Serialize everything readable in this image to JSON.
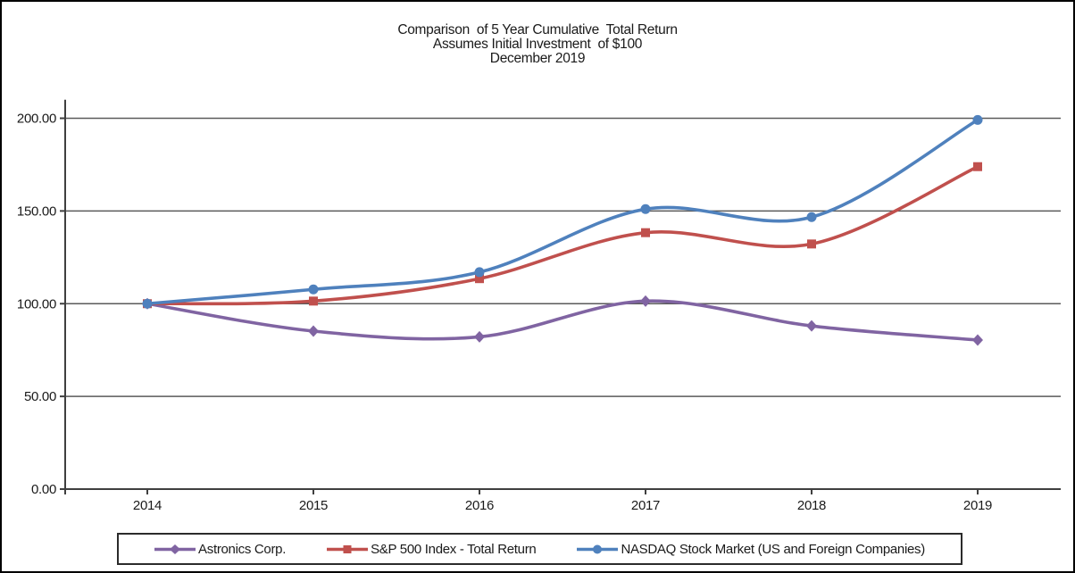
{
  "chart_data": {
    "type": "line",
    "title_lines": [
      "Comparison  of 5 Year Cumulative  Total Return",
      "Assumes Initial Investment  of $100",
      "December 2019"
    ],
    "title": "Comparison of 5 Year Cumulative Total Return, Assumes Initial Investment of $100, December 2019",
    "categories": [
      "2014",
      "2015",
      "2016",
      "2017",
      "2018",
      "2019"
    ],
    "series": [
      {
        "name": "Astronics Corp.",
        "marker": "diamond",
        "color": "#8064A2",
        "values": [
          100.0,
          85.2,
          82.1,
          101.4,
          88.0,
          80.4
        ]
      },
      {
        "name": "S&P 500 Index - Total Return",
        "marker": "square",
        "color": "#C0504D",
        "values": [
          100.0,
          101.4,
          113.5,
          138.3,
          132.2,
          173.9
        ]
      },
      {
        "name": "NASDAQ Stock Market (US and Foreign Companies)",
        "marker": "circle",
        "color": "#4F81BD",
        "values": [
          100.0,
          107.7,
          117.0,
          151.0,
          146.7,
          199.1
        ]
      }
    ],
    "xlabel": "",
    "ylabel": "",
    "ylim": [
      0,
      210
    ],
    "ytick_values": [
      0,
      50,
      100,
      150,
      200
    ],
    "ytick_labels": [
      "0.00",
      "50.00",
      "100.00",
      "150.00",
      "200.00"
    ],
    "grid": true,
    "smooth": true,
    "legend_position": "bottom",
    "colors": {
      "gridline": "#5A5A5A",
      "axis": "#3F3F3F",
      "text": "#1A1A1A",
      "frame_border": "#000000"
    }
  }
}
